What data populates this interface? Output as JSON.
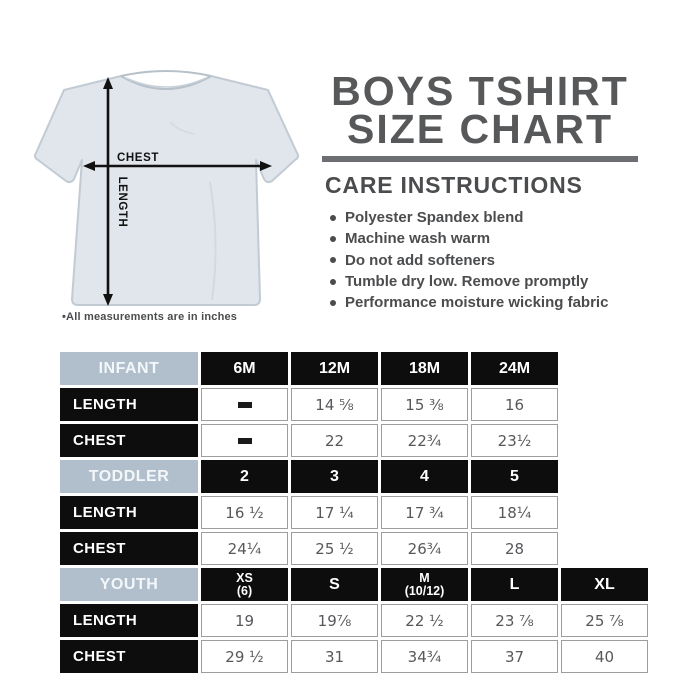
{
  "title": {
    "line1": "BOYS TSHIRT",
    "line2": "SIZE CHART"
  },
  "care": {
    "heading": "CARE INSTRUCTIONS",
    "bullets": [
      "Polyester Spandex blend",
      "Machine wash warm",
      "Do not add softeners",
      "Tumble dry low. Remove promptly",
      "Performance moisture wicking fabric"
    ]
  },
  "illustration": {
    "chest_label": "CHEST",
    "length_label": "LENGTH",
    "note": "•All measurements are in inches"
  },
  "chart_data": {
    "type": "table",
    "title": "BOYS TSHIRT SIZE CHART",
    "units": "inches",
    "row_labels": [
      "LENGTH",
      "CHEST"
    ],
    "sections": [
      {
        "group": "INFANT",
        "sizes": [
          "6M",
          "12M",
          "18M",
          "24M"
        ],
        "length": [
          "-",
          "14 ⅝",
          "15 ⅜",
          "16"
        ],
        "chest": [
          "-",
          "22",
          "22¾",
          "23½"
        ]
      },
      {
        "group": "TODDLER",
        "sizes": [
          "2",
          "3",
          "4",
          "5"
        ],
        "length": [
          "16 ½",
          "17 ¼",
          "17 ¾",
          "18¼"
        ],
        "chest": [
          "24¼",
          "25 ½",
          "26¾",
          "28"
        ]
      },
      {
        "group": "YOUTH",
        "sizes": [
          "XS\n(6)",
          "S",
          "M\n(10/12)",
          "L",
          "XL"
        ],
        "length": [
          "19",
          "19⅞",
          "22 ½",
          "23 ⅞",
          "25 ⅞"
        ],
        "chest": [
          "29 ½",
          "31",
          "34¾",
          "37",
          "40"
        ]
      }
    ]
  },
  "colors": {
    "group_header_bg": "#b1bfcd",
    "size_header_bg": "#0d0d0d",
    "divider_bar": "#6d6e71",
    "title_text": "#57585a",
    "body_text": "#4b4c4e",
    "table_value_text": "#57585b"
  }
}
